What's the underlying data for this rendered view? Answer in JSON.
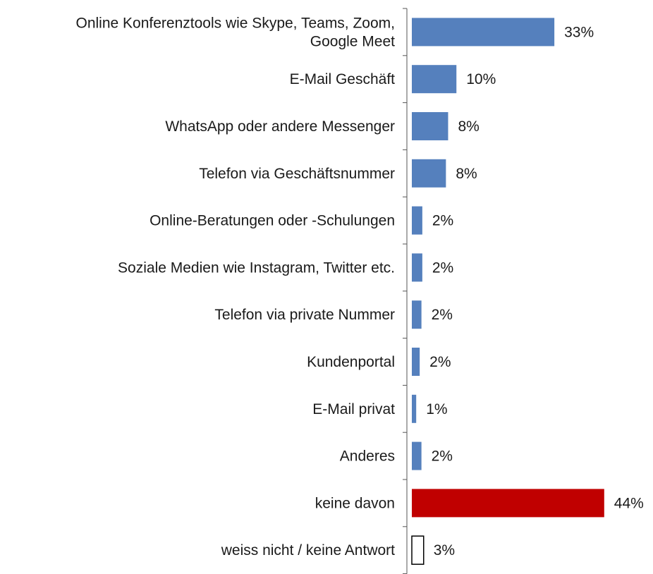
{
  "chart_data": {
    "type": "bar",
    "orientation": "horizontal",
    "title": "",
    "xlabel": "",
    "ylabel": "",
    "grid": false,
    "legend": "none",
    "xlim": [
      0,
      44
    ],
    "categories": [
      [
        "Online Konferenztools wie Skype, Teams, Zoom,",
        "Google Meet"
      ],
      [
        "E-Mail Geschäft"
      ],
      [
        "WhatsApp oder andere Messenger"
      ],
      [
        "Telefon via Geschäftsnummer"
      ],
      [
        "Online-Beratungen oder -Schulungen"
      ],
      [
        "Soziale Medien wie Instagram, Twitter etc."
      ],
      [
        "Telefon via private Nummer"
      ],
      [
        "Kundenportal"
      ],
      [
        "E-Mail privat"
      ],
      [
        "Anderes"
      ],
      [
        "keine davon"
      ],
      [
        "weiss nicht / keine Antwort"
      ]
    ],
    "values": [
      32.6,
      10.2,
      8.3,
      7.8,
      2.4,
      2.4,
      2.2,
      1.8,
      1.0,
      2.2,
      44.0,
      2.7
    ],
    "value_labels": [
      "33%",
      "10%",
      "8%",
      "8%",
      "2%",
      "2%",
      "2%",
      "2%",
      "1%",
      "2%",
      "44%",
      "3%"
    ],
    "bar_styles": [
      "primary",
      "primary",
      "primary",
      "primary",
      "primary",
      "primary",
      "primary",
      "primary",
      "primary",
      "primary",
      "highlight",
      "outline"
    ],
    "colors": {
      "primary": "#5580bd",
      "highlight": "#c00000",
      "outline_stroke": "#000000",
      "axis": "#555555"
    }
  }
}
